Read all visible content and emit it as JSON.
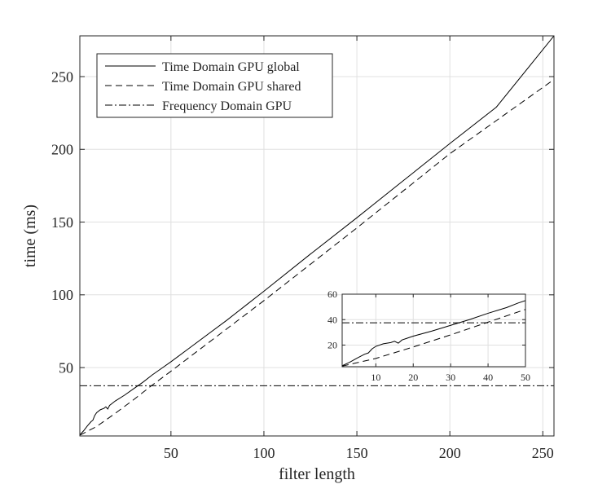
{
  "chart_data": [
    {
      "type": "line",
      "title": "",
      "xlabel": "filter length",
      "ylabel": "time (ms)",
      "xlim": [
        1,
        256
      ],
      "ylim": [
        3,
        278
      ],
      "xticks": [
        50,
        100,
        150,
        200,
        250
      ],
      "yticks": [
        50,
        100,
        150,
        200,
        250
      ],
      "grid": true,
      "legend_position": "top-left",
      "series": [
        {
          "name": "Time Domain GPU global",
          "style": "solid",
          "color": "#000000",
          "x": [
            1,
            3,
            5,
            7,
            8,
            9,
            10,
            12,
            14,
            15,
            16,
            17,
            18,
            20,
            25,
            30,
            35,
            40,
            45,
            50,
            60,
            70,
            80,
            90,
            100,
            125,
            150,
            175,
            200,
            225,
            256
          ],
          "y": [
            3.8,
            6.5,
            9.8,
            12.8,
            13.8,
            17.0,
            19.0,
            21.0,
            22.0,
            23.0,
            21.5,
            24.0,
            25.0,
            27.0,
            31.0,
            35.5,
            40.0,
            45.0,
            49.5,
            54.0,
            63.5,
            73.0,
            82.5,
            92.5,
            102.5,
            128.0,
            153.0,
            178.5,
            204.0,
            229.0,
            278.0
          ]
        },
        {
          "name": "Time Domain GPU shared",
          "style": "dashed",
          "color": "#000000",
          "x": [
            1,
            10,
            20,
            30,
            40,
            50,
            100,
            150,
            200,
            256
          ],
          "y": [
            3.5,
            9.5,
            18.5,
            28.0,
            38.0,
            47.5,
            96.0,
            146.0,
            197.0,
            248.0
          ]
        },
        {
          "name": "Frequency Domain  GPU",
          "style": "dashdot",
          "color": "#000000",
          "x": [
            1,
            256
          ],
          "y": [
            37.5,
            37.5
          ]
        }
      ]
    },
    {
      "type": "line",
      "title": "",
      "xlabel": "",
      "ylabel": "",
      "xlim": [
        1,
        50
      ],
      "ylim": [
        3,
        60
      ],
      "xticks": [
        10,
        20,
        30,
        40,
        50
      ],
      "yticks": [
        20,
        40,
        60
      ],
      "grid": true,
      "series": [
        {
          "name": "Time Domain GPU global",
          "style": "solid",
          "color": "#000000",
          "x": [
            1,
            3,
            5,
            7,
            8,
            9,
            10,
            12,
            14,
            15,
            16,
            17,
            18,
            20,
            25,
            30,
            35,
            40,
            45,
            48,
            50
          ],
          "y": [
            3.8,
            6.5,
            9.8,
            12.8,
            13.8,
            17.0,
            19.0,
            21.0,
            22.0,
            23.0,
            21.5,
            24.0,
            25.0,
            27.0,
            31.0,
            35.5,
            40.0,
            45.0,
            49.5,
            53.0,
            55.0
          ]
        },
        {
          "name": "Time Domain GPU shared",
          "style": "dashed",
          "color": "#000000",
          "x": [
            1,
            10,
            20,
            30,
            40,
            50
          ],
          "y": [
            3.5,
            9.5,
            18.5,
            28.0,
            38.0,
            48.0
          ]
        },
        {
          "name": "Frequency Domain  GPU",
          "style": "dashdot",
          "color": "#000000",
          "x": [
            1,
            50
          ],
          "y": [
            37.5,
            37.5
          ]
        }
      ]
    }
  ]
}
